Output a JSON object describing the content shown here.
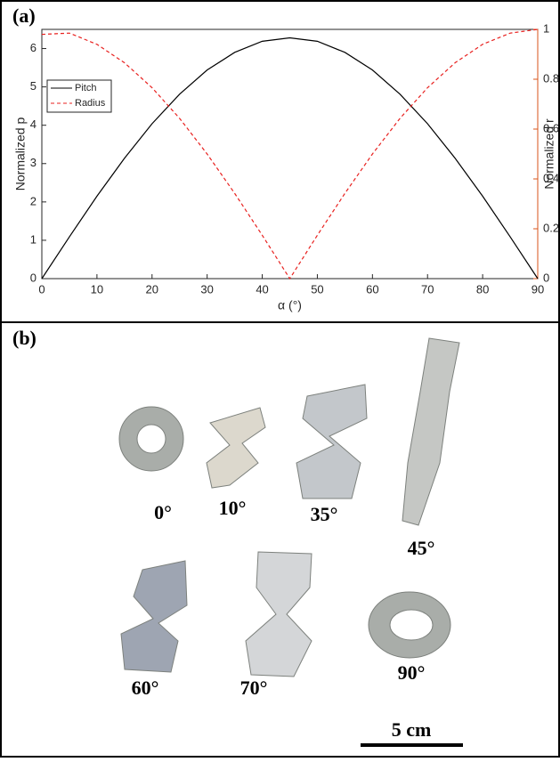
{
  "chart_data": {
    "type": "line",
    "panel_label": "(a)",
    "x_label": "α (°)",
    "y_label": "Normalized p",
    "y2_label": "Normalized r",
    "x": [
      0,
      5,
      10,
      15,
      20,
      25,
      30,
      35,
      40,
      45,
      50,
      55,
      60,
      65,
      70,
      75,
      80,
      85,
      90
    ],
    "series": [
      {
        "name": "Pitch",
        "color": "#000000",
        "dash": false,
        "values": [
          0,
          1.09,
          2.15,
          3.14,
          4.04,
          4.81,
          5.44,
          5.9,
          6.19,
          6.28,
          6.19,
          5.9,
          5.44,
          4.81,
          4.04,
          3.14,
          2.15,
          1.09,
          0
        ]
      },
      {
        "name": "Radius",
        "color": "#e8211f",
        "dash": true,
        "axis": "y2",
        "values": [
          0.98,
          0.985,
          0.94,
          0.866,
          0.766,
          0.643,
          0.5,
          0.342,
          0.174,
          0,
          0.174,
          0.342,
          0.5,
          0.643,
          0.766,
          0.866,
          0.94,
          0.985,
          1
        ]
      }
    ],
    "xlim": [
      0,
      90
    ],
    "xticks": [
      0,
      10,
      20,
      30,
      40,
      50,
      60,
      70,
      80,
      90
    ],
    "ylim": [
      0,
      6.5
    ],
    "yticks": [
      0,
      1,
      2,
      3,
      4,
      5,
      6
    ],
    "y2lim": [
      0,
      1
    ],
    "y2ticks": [
      0,
      0.2,
      0.4,
      0.6,
      0.8,
      1
    ],
    "y2_color": "#d95319",
    "legend": "upper left"
  },
  "panel_b": {
    "label": "(b)",
    "samples": [
      "0°",
      "10°",
      "35°",
      "45°",
      "60°",
      "70°",
      "90°"
    ],
    "scale_bar": "5 cm"
  }
}
